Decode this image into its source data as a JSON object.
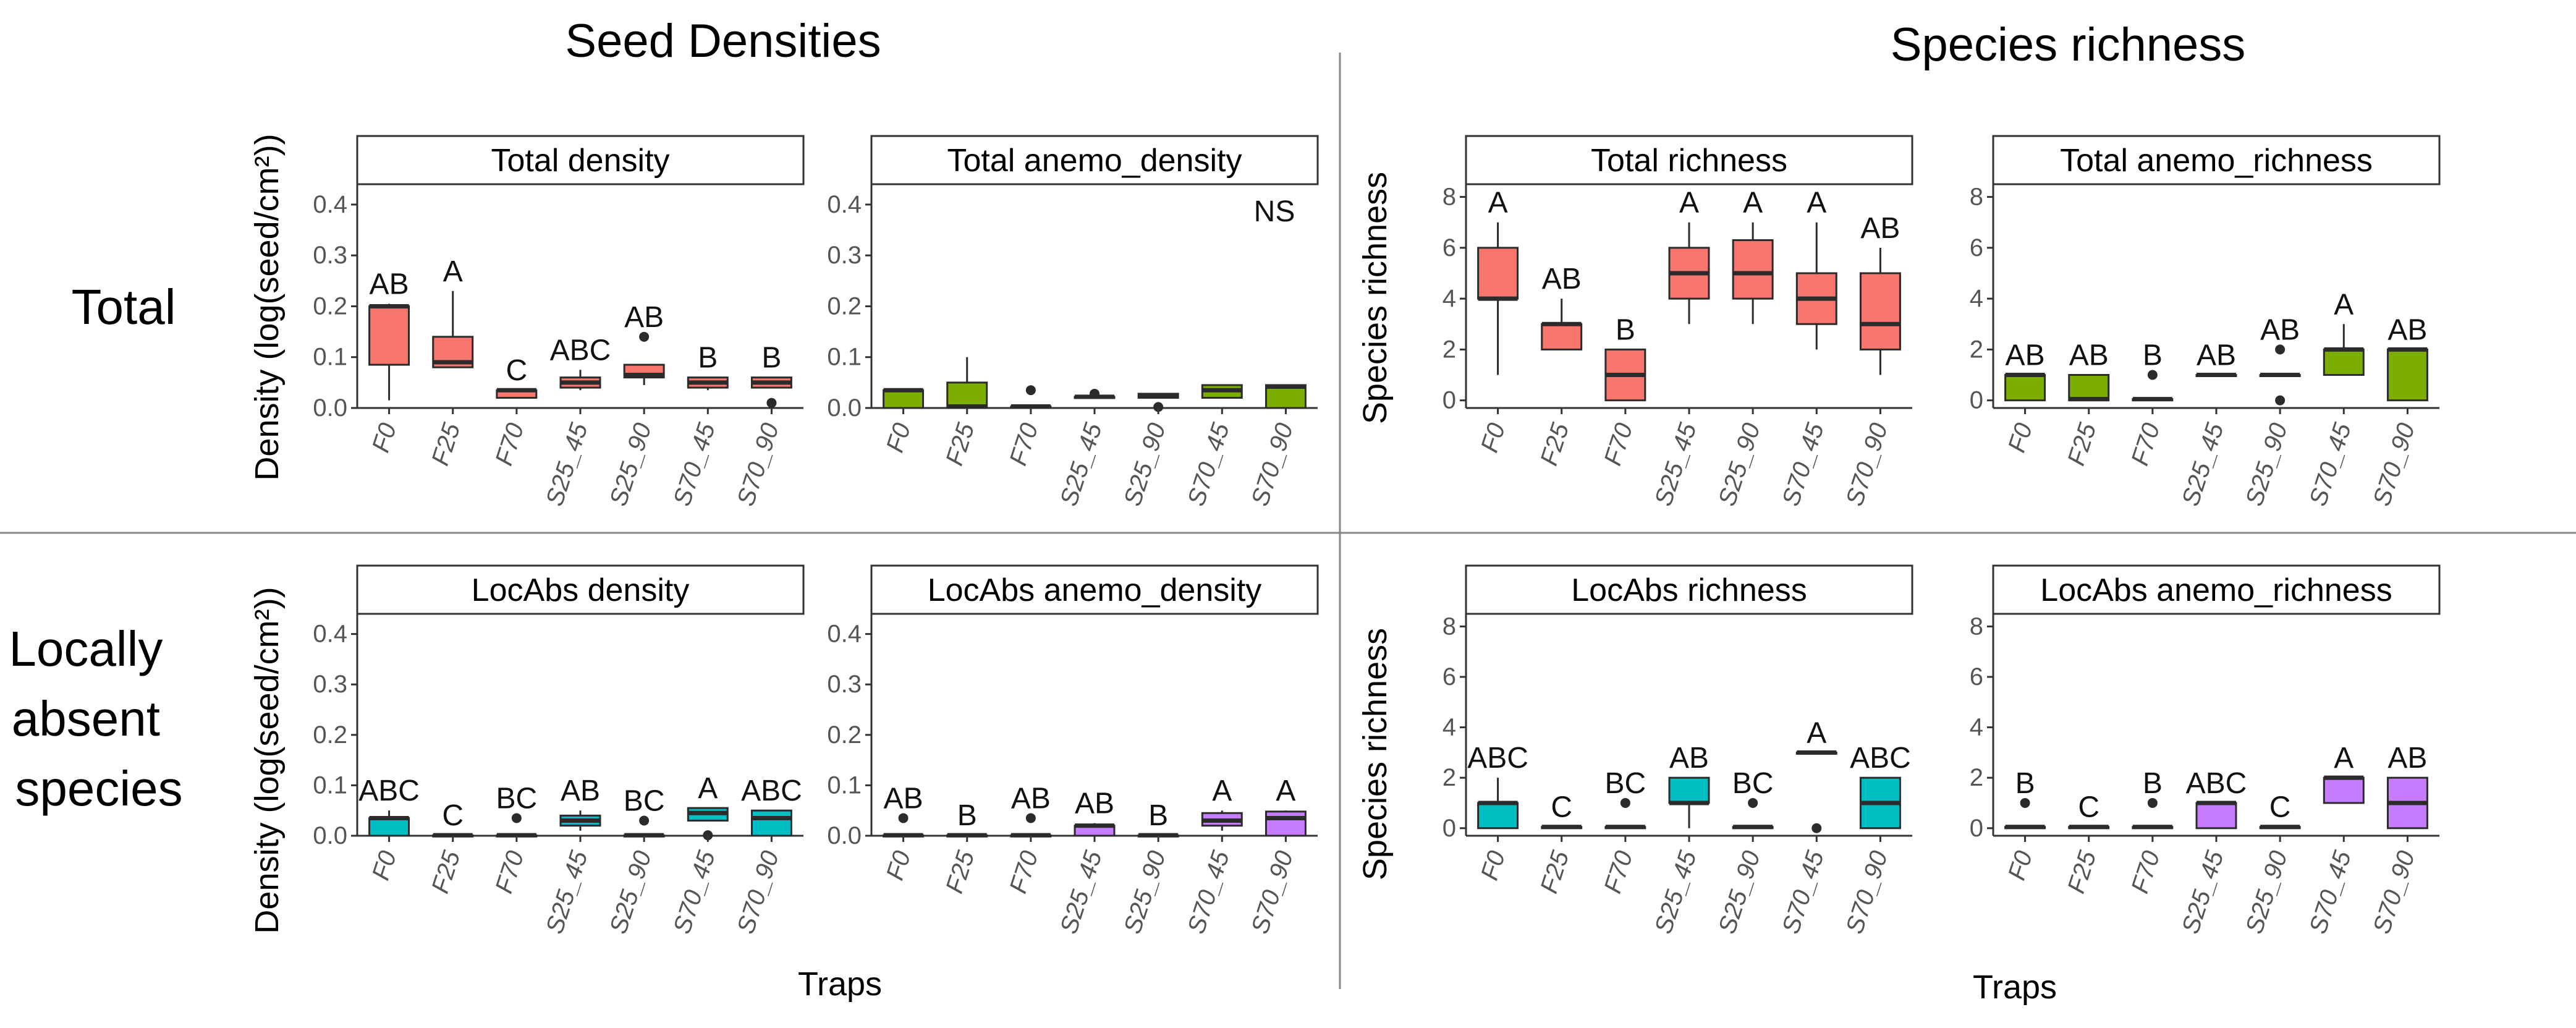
{
  "titles": {
    "seed_densities": "Seed Densities",
    "species_richness": "Species richness"
  },
  "rows": {
    "total": [
      "Total"
    ],
    "local": [
      "Locally",
      "absent",
      "species"
    ]
  },
  "axes": {
    "density_ylabel": "Density (log(seed/cm²))",
    "richness_ylabel": "Species richness",
    "xlabel": "Traps"
  },
  "colors": {
    "red": "#F8766D",
    "green": "#7CAE00",
    "cyan": "#00BFC4",
    "purple": "#C77CFF",
    "outline": "#2b2b2b"
  },
  "chart_data": [
    {
      "id": "total_density",
      "type": "box",
      "title": "Total density",
      "row": "total",
      "col": 0,
      "categories": [
        "F0",
        "F25",
        "F70",
        "S25_45",
        "S25_90",
        "S70_45",
        "S70_90"
      ],
      "ylim": [
        0,
        0.44
      ],
      "yticks": [
        0.0,
        0.1,
        0.2,
        0.3,
        0.4
      ],
      "ytick_labels": [
        "0.0",
        "0.1",
        "0.2",
        "0.3",
        "0.4"
      ],
      "series": [
        {
          "category": "F0",
          "color": "red",
          "min": 0.015,
          "q1": 0.085,
          "median": 0.2,
          "q3": 0.2,
          "max": 0.205,
          "outliers": [],
          "letter": "AB"
        },
        {
          "category": "F25",
          "color": "red",
          "min": 0.08,
          "q1": 0.08,
          "median": 0.09,
          "q3": 0.14,
          "max": 0.23,
          "outliers": [],
          "letter": "A"
        },
        {
          "category": "F70",
          "color": "red",
          "min": 0.02,
          "q1": 0.02,
          "median": 0.035,
          "q3": 0.035,
          "max": 0.035,
          "outliers": [],
          "letter": "C"
        },
        {
          "category": "S25_45",
          "color": "red",
          "min": 0.035,
          "q1": 0.04,
          "median": 0.05,
          "q3": 0.06,
          "max": 0.075,
          "outliers": [],
          "letter": "ABC"
        },
        {
          "category": "S25_90",
          "color": "red",
          "min": 0.045,
          "q1": 0.06,
          "median": 0.065,
          "q3": 0.085,
          "max": 0.085,
          "outliers": [
            0.14
          ],
          "letter": "AB"
        },
        {
          "category": "S70_45",
          "color": "red",
          "min": 0.035,
          "q1": 0.04,
          "median": 0.05,
          "q3": 0.06,
          "max": 0.06,
          "outliers": [],
          "letter": "B"
        },
        {
          "category": "S70_90",
          "color": "red",
          "min": 0.04,
          "q1": 0.04,
          "median": 0.05,
          "q3": 0.06,
          "max": 0.06,
          "outliers": [
            0.01
          ],
          "letter": "B"
        }
      ]
    },
    {
      "id": "total_anemo_density",
      "type": "box",
      "title": "Total anemo_density",
      "row": "total",
      "col": 1,
      "categories": [
        "F0",
        "F25",
        "F70",
        "S25_45",
        "S25_90",
        "S70_45",
        "S70_90"
      ],
      "ylim": [
        0,
        0.44
      ],
      "yticks": [
        0.0,
        0.1,
        0.2,
        0.3,
        0.4
      ],
      "ytick_labels": [
        "0.0",
        "0.1",
        "0.2",
        "0.3",
        "0.4"
      ],
      "annotation": "NS",
      "series": [
        {
          "category": "F0",
          "color": "green",
          "min": 0,
          "q1": 0,
          "median": 0.035,
          "q3": 0.035,
          "max": 0.035,
          "outliers": [],
          "letter": ""
        },
        {
          "category": "F25",
          "color": "green",
          "min": 0,
          "q1": 0,
          "median": 0.003,
          "q3": 0.05,
          "max": 0.1,
          "outliers": [],
          "letter": ""
        },
        {
          "category": "F70",
          "color": "green",
          "min": 0,
          "q1": 0,
          "median": 0.003,
          "q3": 0.003,
          "max": 0.003,
          "outliers": [
            0.035
          ],
          "letter": ""
        },
        {
          "category": "S25_45",
          "color": "green",
          "min": 0.02,
          "q1": 0.02,
          "median": 0.022,
          "q3": 0.022,
          "max": 0.022,
          "outliers": [
            0.028
          ],
          "letter": ""
        },
        {
          "category": "S25_90",
          "color": "green",
          "min": 0.02,
          "q1": 0.02,
          "median": 0.025,
          "q3": 0.028,
          "max": 0.028,
          "outliers": [
            0.002
          ],
          "letter": ""
        },
        {
          "category": "S70_45",
          "color": "green",
          "min": 0.02,
          "q1": 0.02,
          "median": 0.035,
          "q3": 0.045,
          "max": 0.045,
          "outliers": [],
          "letter": ""
        },
        {
          "category": "S70_90",
          "color": "green",
          "min": 0,
          "q1": 0,
          "median": 0.042,
          "q3": 0.045,
          "max": 0.045,
          "outliers": [],
          "letter": ""
        }
      ]
    },
    {
      "id": "total_richness",
      "type": "box",
      "title": "Total richness",
      "row": "total",
      "col": 2,
      "categories": [
        "F0",
        "F25",
        "F70",
        "S25_45",
        "S25_90",
        "S70_45",
        "S70_90"
      ],
      "ylim": [
        -0.3,
        8.5
      ],
      "yticks": [
        0,
        2,
        4,
        6,
        8
      ],
      "ytick_labels": [
        "0",
        "2",
        "4",
        "6",
        "8"
      ],
      "series": [
        {
          "category": "F0",
          "color": "red",
          "min": 1,
          "q1": 4,
          "median": 4,
          "q3": 6,
          "max": 7,
          "outliers": [],
          "letter": "A"
        },
        {
          "category": "F25",
          "color": "red",
          "min": 2,
          "q1": 2,
          "median": 3,
          "q3": 3,
          "max": 4,
          "outliers": [],
          "letter": "AB"
        },
        {
          "category": "F70",
          "color": "red",
          "min": 0,
          "q1": 0,
          "median": 1,
          "q3": 2,
          "max": 2,
          "outliers": [],
          "letter": "B"
        },
        {
          "category": "S25_45",
          "color": "red",
          "min": 3,
          "q1": 4,
          "median": 5,
          "q3": 6,
          "max": 7,
          "outliers": [],
          "letter": "A"
        },
        {
          "category": "S25_90",
          "color": "red",
          "min": 3,
          "q1": 4,
          "median": 5,
          "q3": 6.3,
          "max": 7,
          "outliers": [],
          "letter": "A"
        },
        {
          "category": "S70_45",
          "color": "red",
          "min": 2,
          "q1": 3,
          "median": 4,
          "q3": 5,
          "max": 7,
          "outliers": [],
          "letter": "A"
        },
        {
          "category": "S70_90",
          "color": "red",
          "min": 1,
          "q1": 2,
          "median": 3,
          "q3": 5,
          "max": 6,
          "outliers": [],
          "letter": "AB"
        }
      ]
    },
    {
      "id": "total_anemo_richness",
      "type": "box",
      "title": "Total anemo_richness",
      "row": "total",
      "col": 3,
      "categories": [
        "F0",
        "F25",
        "F70",
        "S25_45",
        "S25_90",
        "S70_45",
        "S70_90"
      ],
      "ylim": [
        -0.3,
        8.5
      ],
      "yticks": [
        0,
        2,
        4,
        6,
        8
      ],
      "ytick_labels": [
        "0",
        "2",
        "4",
        "6",
        "8"
      ],
      "series": [
        {
          "category": "F0",
          "color": "green",
          "min": 0,
          "q1": 0,
          "median": 1,
          "q3": 1,
          "max": 1,
          "outliers": [],
          "letter": "AB"
        },
        {
          "category": "F25",
          "color": "green",
          "min": 0,
          "q1": 0,
          "median": 0.05,
          "q3": 1,
          "max": 1,
          "outliers": [],
          "letter": "AB"
        },
        {
          "category": "F70",
          "color": "green",
          "min": 0,
          "q1": 0,
          "median": 0.05,
          "q3": 0.05,
          "max": 0.05,
          "outliers": [
            1
          ],
          "letter": "B"
        },
        {
          "category": "S25_45",
          "color": "green",
          "min": 1,
          "q1": 1,
          "median": 1,
          "q3": 1,
          "max": 1,
          "outliers": [],
          "letter": "AB"
        },
        {
          "category": "S25_90",
          "color": "green",
          "min": 1,
          "q1": 1,
          "median": 1,
          "q3": 1,
          "max": 1,
          "outliers": [
            2,
            0
          ],
          "letter": "AB"
        },
        {
          "category": "S70_45",
          "color": "green",
          "min": 1,
          "q1": 1,
          "median": 2,
          "q3": 2,
          "max": 3,
          "outliers": [],
          "letter": "A"
        },
        {
          "category": "S70_90",
          "color": "green",
          "min": 0,
          "q1": 0,
          "median": 2,
          "q3": 2,
          "max": 2,
          "outliers": [],
          "letter": "AB"
        }
      ]
    },
    {
      "id": "locabs_density",
      "type": "box",
      "title": "LocAbs density",
      "row": "local",
      "col": 0,
      "categories": [
        "F0",
        "F25",
        "F70",
        "S25_45",
        "S25_90",
        "S70_45",
        "S70_90"
      ],
      "ylim": [
        0,
        0.44
      ],
      "yticks": [
        0.0,
        0.1,
        0.2,
        0.3,
        0.4
      ],
      "ytick_labels": [
        "0.0",
        "0.1",
        "0.2",
        "0.3",
        "0.4"
      ],
      "series": [
        {
          "category": "F0",
          "color": "cyan",
          "min": 0,
          "q1": 0,
          "median": 0.035,
          "q3": 0.035,
          "max": 0.05,
          "outliers": [],
          "letter": "ABC"
        },
        {
          "category": "F25",
          "color": "cyan",
          "min": 0,
          "q1": 0,
          "median": 0.001,
          "q3": 0.001,
          "max": 0.001,
          "outliers": [],
          "letter": "C"
        },
        {
          "category": "F70",
          "color": "cyan",
          "min": 0,
          "q1": 0,
          "median": 0.001,
          "q3": 0.001,
          "max": 0.001,
          "outliers": [
            0.035
          ],
          "letter": "BC"
        },
        {
          "category": "S25_45",
          "color": "cyan",
          "min": 0.01,
          "q1": 0.02,
          "median": 0.03,
          "q3": 0.04,
          "max": 0.05,
          "outliers": [],
          "letter": "AB"
        },
        {
          "category": "S25_90",
          "color": "cyan",
          "min": 0,
          "q1": 0,
          "median": 0.001,
          "q3": 0.001,
          "max": 0.001,
          "outliers": [
            0.03
          ],
          "letter": "BC"
        },
        {
          "category": "S70_45",
          "color": "cyan",
          "min": 0.03,
          "q1": 0.03,
          "median": 0.045,
          "q3": 0.055,
          "max": 0.055,
          "outliers": [
            0.001
          ],
          "letter": "A"
        },
        {
          "category": "S70_90",
          "color": "cyan",
          "min": 0,
          "q1": 0,
          "median": 0.035,
          "q3": 0.05,
          "max": 0.05,
          "outliers": [],
          "letter": "ABC"
        }
      ]
    },
    {
      "id": "locabs_anemo_density",
      "type": "box",
      "title": "LocAbs anemo_density",
      "row": "local",
      "col": 1,
      "categories": [
        "F0",
        "F25",
        "F70",
        "S25_45",
        "S25_90",
        "S70_45",
        "S70_90"
      ],
      "ylim": [
        0,
        0.44
      ],
      "yticks": [
        0.0,
        0.1,
        0.2,
        0.3,
        0.4
      ],
      "ytick_labels": [
        "0.0",
        "0.1",
        "0.2",
        "0.3",
        "0.4"
      ],
      "series": [
        {
          "category": "F0",
          "color": "purple",
          "min": 0,
          "q1": 0,
          "median": 0.001,
          "q3": 0.001,
          "max": 0.001,
          "outliers": [
            0.035
          ],
          "letter": "AB"
        },
        {
          "category": "F25",
          "color": "purple",
          "min": 0,
          "q1": 0,
          "median": 0.001,
          "q3": 0.001,
          "max": 0.001,
          "outliers": [],
          "letter": "B"
        },
        {
          "category": "F70",
          "color": "purple",
          "min": 0,
          "q1": 0,
          "median": 0.001,
          "q3": 0.001,
          "max": 0.001,
          "outliers": [
            0.035
          ],
          "letter": "AB"
        },
        {
          "category": "S25_45",
          "color": "purple",
          "min": 0,
          "q1": 0,
          "median": 0.02,
          "q3": 0.02,
          "max": 0.025,
          "outliers": [],
          "letter": "AB"
        },
        {
          "category": "S25_90",
          "color": "purple",
          "min": 0,
          "q1": 0,
          "median": 0.001,
          "q3": 0.001,
          "max": 0.001,
          "outliers": [],
          "letter": "B"
        },
        {
          "category": "S70_45",
          "color": "purple",
          "min": 0.01,
          "q1": 0.02,
          "median": 0.03,
          "q3": 0.045,
          "max": 0.05,
          "outliers": [],
          "letter": "A"
        },
        {
          "category": "S70_90",
          "color": "purple",
          "min": 0,
          "q1": 0,
          "median": 0.035,
          "q3": 0.048,
          "max": 0.05,
          "outliers": [],
          "letter": "A"
        }
      ]
    },
    {
      "id": "locabs_richness",
      "type": "box",
      "title": "LocAbs richness",
      "row": "local",
      "col": 2,
      "categories": [
        "F0",
        "F25",
        "F70",
        "S25_45",
        "S25_90",
        "S70_45",
        "S70_90"
      ],
      "ylim": [
        -0.3,
        8.5
      ],
      "yticks": [
        0,
        2,
        4,
        6,
        8
      ],
      "ytick_labels": [
        "0",
        "2",
        "4",
        "6",
        "8"
      ],
      "series": [
        {
          "category": "F0",
          "color": "cyan",
          "min": 0,
          "q1": 0,
          "median": 1,
          "q3": 1,
          "max": 2,
          "outliers": [],
          "letter": "ABC"
        },
        {
          "category": "F25",
          "color": "cyan",
          "min": 0,
          "q1": 0,
          "median": 0.05,
          "q3": 0.05,
          "max": 0.05,
          "outliers": [],
          "letter": "C"
        },
        {
          "category": "F70",
          "color": "cyan",
          "min": 0,
          "q1": 0,
          "median": 0.05,
          "q3": 0.05,
          "max": 0.05,
          "outliers": [
            1
          ],
          "letter": "BC"
        },
        {
          "category": "S25_45",
          "color": "cyan",
          "min": 0,
          "q1": 1,
          "median": 1,
          "q3": 2,
          "max": 2,
          "outliers": [],
          "letter": "AB"
        },
        {
          "category": "S25_90",
          "color": "cyan",
          "min": 0,
          "q1": 0,
          "median": 0.05,
          "q3": 0.05,
          "max": 0.05,
          "outliers": [
            1
          ],
          "letter": "BC"
        },
        {
          "category": "S70_45",
          "color": "cyan",
          "min": 3,
          "q1": 3,
          "median": 3,
          "q3": 3,
          "max": 3,
          "outliers": [
            0
          ],
          "letter": "A"
        },
        {
          "category": "S70_90",
          "color": "cyan",
          "min": 0,
          "q1": 0,
          "median": 1,
          "q3": 2,
          "max": 2,
          "outliers": [],
          "letter": "ABC"
        }
      ]
    },
    {
      "id": "locabs_anemo_richness",
      "type": "box",
      "title": "LocAbs anemo_richness",
      "row": "local",
      "col": 3,
      "categories": [
        "F0",
        "F25",
        "F70",
        "S25_45",
        "S25_90",
        "S70_45",
        "S70_90"
      ],
      "ylim": [
        -0.3,
        8.5
      ],
      "yticks": [
        0,
        2,
        4,
        6,
        8
      ],
      "ytick_labels": [
        "0",
        "2",
        "4",
        "6",
        "8"
      ],
      "series": [
        {
          "category": "F0",
          "color": "purple",
          "min": 0,
          "q1": 0,
          "median": 0.05,
          "q3": 0.05,
          "max": 0.05,
          "outliers": [
            1
          ],
          "letter": "B"
        },
        {
          "category": "F25",
          "color": "purple",
          "min": 0,
          "q1": 0,
          "median": 0.05,
          "q3": 0.05,
          "max": 0.05,
          "outliers": [],
          "letter": "C"
        },
        {
          "category": "F70",
          "color": "purple",
          "min": 0,
          "q1": 0,
          "median": 0.05,
          "q3": 0.05,
          "max": 0.05,
          "outliers": [
            1
          ],
          "letter": "B"
        },
        {
          "category": "S25_45",
          "color": "purple",
          "min": 0,
          "q1": 0,
          "median": 1,
          "q3": 1,
          "max": 1,
          "outliers": [],
          "letter": "ABC"
        },
        {
          "category": "S25_90",
          "color": "purple",
          "min": 0,
          "q1": 0,
          "median": 0.05,
          "q3": 0.05,
          "max": 0.05,
          "outliers": [],
          "letter": "C"
        },
        {
          "category": "S70_45",
          "color": "purple",
          "min": 1,
          "q1": 1,
          "median": 2,
          "q3": 2,
          "max": 2,
          "outliers": [],
          "letter": "A"
        },
        {
          "category": "S70_90",
          "color": "purple",
          "min": 0,
          "q1": 0,
          "median": 1,
          "q3": 2,
          "max": 2,
          "outliers": [],
          "letter": "AB"
        }
      ]
    }
  ]
}
